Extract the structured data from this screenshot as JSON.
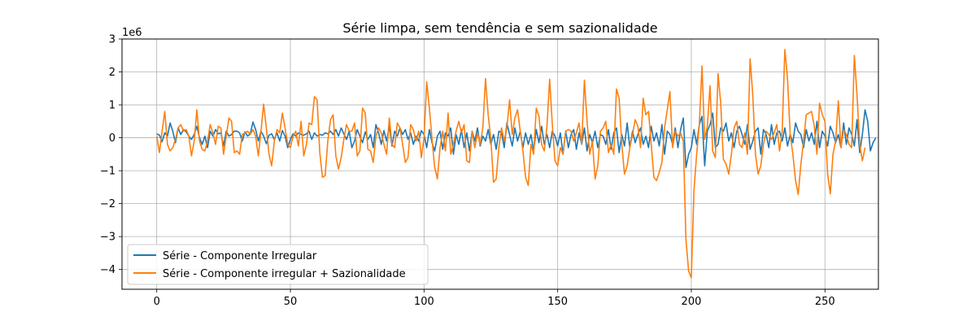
{
  "chart_data": {
    "type": "line",
    "title": "Série limpa, sem tendência e sem sazionalidade",
    "xlabel": "",
    "ylabel": "",
    "scale_label": "1e6",
    "xlim": [
      -13,
      270
    ],
    "ylim": [
      -4.6,
      3.0
    ],
    "xticks": [
      0,
      50,
      100,
      150,
      200,
      250
    ],
    "yticks": [
      -4,
      -3,
      -2,
      -1,
      0,
      1,
      2,
      3
    ],
    "xtick_labels": [
      "0",
      "50",
      "100",
      "150",
      "200",
      "250"
    ],
    "ytick_labels": [
      "−4",
      "−3",
      "−2",
      "−1",
      "0",
      "1",
      "2",
      "3"
    ],
    "grid": true,
    "legend_position": "lower-left",
    "series": [
      {
        "name": "Série - Componente Irregular",
        "color": "#1f77b4",
        "values": [
          0.12,
          0.08,
          -0.12,
          0.15,
          0.05,
          0.45,
          0.2,
          -0.15,
          0.3,
          0.1,
          0.25,
          0.18,
          0.05,
          -0.05,
          0.1,
          0.35,
          0.0,
          -0.2,
          0.05,
          -0.3,
          0.2,
          0.05,
          0.25,
          0.12,
          0.15,
          -0.25,
          0.2,
          0.05,
          0.1,
          0.2,
          0.2,
          0.15,
          -0.1,
          0.18,
          0.05,
          0.12,
          0.48,
          0.25,
          -0.1,
          0.2,
          0.05,
          -0.18,
          0.08,
          0.12,
          -0.05,
          0.15,
          -0.1,
          0.22,
          0.05,
          -0.3,
          -0.05,
          0.12,
          0.05,
          0.15,
          0.1,
          0.08,
          0.12,
          0.2,
          -0.05,
          0.15,
          0.05,
          0.1,
          0.08,
          0.15,
          0.12,
          0.2,
          0.1,
          0.25,
          0.05,
          0.3,
          0.12,
          -0.05,
          0.2,
          -0.3,
          -0.1,
          0.25,
          0.05,
          -0.15,
          0.18,
          -0.05,
          0.1,
          -0.3,
          0.4,
          0.15,
          -0.2,
          0.22,
          -0.1,
          0.35,
          -0.25,
          0.2,
          0.05,
          0.3,
          0.1,
          0.25,
          -0.05,
          0.15,
          -0.2,
          0.05,
          -0.1,
          0.22,
          0.1,
          -0.3,
          0.25,
          -0.15,
          -0.4,
          0.05,
          0.2,
          -0.35,
          0.15,
          0.05,
          0.3,
          -0.5,
          0.1,
          -0.2,
          0.25,
          -0.3,
          0.15,
          -0.4,
          0.2,
          -0.1,
          0.3,
          -0.25,
          0.05,
          -0.1,
          0.25,
          -0.2,
          0.1,
          -0.35,
          0.2,
          0.15,
          -0.3,
          0.45,
          0.1,
          -0.25,
          0.3,
          -0.1,
          0.2,
          -0.3,
          0.15,
          -0.2,
          0.1,
          -0.4,
          0.25,
          -0.15,
          0.35,
          -0.2,
          0.1,
          -0.3,
          0.2,
          0.05,
          -0.25,
          0.15,
          -0.5,
          0.2,
          -0.3,
          0.1,
          0.25,
          -0.35,
          0.15,
          -0.2,
          0.3,
          -0.4,
          0.1,
          -0.15,
          0.2,
          -0.3,
          0.1,
          0.05,
          -0.2,
          0.25,
          -0.35,
          0.15,
          0.3,
          -0.45,
          0.1,
          -0.25,
          0.45,
          -0.3,
          0.2,
          -0.15,
          0.1,
          0.3,
          -0.2,
          0.05,
          -0.3,
          0.35,
          -0.1,
          0.15,
          -0.25,
          0.4,
          -0.5,
          0.2,
          0.1,
          -0.2,
          0.3,
          -0.3,
          0.25,
          0.6,
          -0.9,
          -0.5,
          -0.3,
          0.25,
          -0.2,
          0.4,
          0.65,
          -0.85,
          0.2,
          0.4,
          0.75,
          -0.3,
          -0.2,
          0.3,
          0.2,
          0.45,
          -0.1,
          0.15,
          -0.3,
          0.2,
          0.35,
          0.1,
          -0.2,
          0.4,
          -0.35,
          -0.1,
          0.2,
          0.3,
          -0.5,
          0.25,
          0.1,
          -0.3,
          0.4,
          -0.2,
          0.15,
          0.2,
          -0.1,
          0.3,
          -0.25,
          0.1,
          -0.15,
          0.45,
          0.2,
          0.1,
          -0.3,
          0.25,
          -0.1,
          0.15,
          -0.2,
          0.5,
          -0.3,
          0.2,
          0.05,
          -0.25,
          0.35,
          0.15,
          -0.15,
          0.1,
          -0.3,
          0.45,
          -0.2,
          0.3,
          0.1,
          -0.25,
          0.55,
          -0.45,
          0.1,
          0.85,
          0.5,
          -0.4,
          -0.15,
          0.0
        ]
      },
      {
        "name": "Série - Componente irregular + Sazionalidade",
        "color": "#ff7f0e",
        "values": [
          0.05,
          -0.45,
          0.2,
          0.8,
          -0.2,
          -0.4,
          -0.3,
          -0.05,
          0.3,
          0.4,
          0.2,
          0.25,
          0.05,
          -0.55,
          -0.1,
          0.85,
          -0.1,
          -0.35,
          -0.4,
          -0.1,
          0.4,
          0.15,
          -0.2,
          0.35,
          0.3,
          -0.5,
          0.05,
          0.6,
          0.5,
          -0.45,
          -0.4,
          -0.5,
          0.1,
          0.15,
          0.2,
          0.1,
          0.25,
          0.05,
          -0.55,
          0.2,
          1.02,
          0.3,
          -0.5,
          -0.85,
          -0.1,
          0.25,
          0.15,
          0.75,
          0.3,
          -0.2,
          -0.3,
          0.05,
          0.2,
          -0.25,
          0.5,
          -0.55,
          -0.2,
          0.45,
          0.4,
          1.25,
          1.15,
          -0.45,
          -1.2,
          -1.15,
          -0.1,
          0.55,
          0.7,
          -0.55,
          -0.95,
          -0.6,
          -0.05,
          0.4,
          0.2,
          0.2,
          0.45,
          -0.55,
          -0.4,
          0.9,
          0.75,
          -0.35,
          -0.4,
          -0.75,
          0.05,
          0.3,
          0.15,
          -0.2,
          -0.5,
          0.6,
          -0.2,
          -0.3,
          0.45,
          0.3,
          -0.2,
          -0.75,
          -0.6,
          0.4,
          0.25,
          -0.1,
          0.2,
          -0.6,
          0.0,
          1.7,
          0.9,
          -0.05,
          -0.9,
          -1.25,
          -0.3,
          0.2,
          -0.4,
          0.75,
          -0.5,
          -0.2,
          0.2,
          0.5,
          0.15,
          0.4,
          -0.7,
          -0.75,
          0.2,
          -0.3,
          0.15,
          -0.2,
          0.3,
          1.8,
          0.7,
          -0.05,
          -1.35,
          -1.25,
          -0.3,
          0.3,
          -0.1,
          0.3,
          1.15,
          0.1,
          0.6,
          0.85,
          0.2,
          -0.4,
          -1.2,
          -1.45,
          -0.2,
          -0.5,
          0.9,
          0.65,
          -0.2,
          -0.4,
          0.35,
          1.78,
          0.4,
          -0.7,
          -0.85,
          -0.3,
          -0.5,
          0.2,
          0.25,
          0.2,
          -0.1,
          0.15,
          0.45,
          -0.2,
          1.75,
          0.5,
          -0.5,
          -0.1,
          -1.25,
          -0.85,
          0.2,
          0.3,
          0.5,
          -0.45,
          -0.2,
          -0.5,
          1.48,
          1.2,
          -0.2,
          -1.1,
          -0.85,
          -0.3,
          0.1,
          0.55,
          0.35,
          -0.3,
          1.2,
          0.7,
          0.8,
          -0.2,
          -1.2,
          -1.3,
          -1.05,
          -0.75,
          0.3,
          0.85,
          1.4,
          -0.3,
          0.2,
          0.05,
          0.15,
          -0.1,
          -3.1,
          -4.05,
          -4.25,
          -1.6,
          -0.5,
          0.4,
          2.18,
          -0.05,
          0.35,
          1.58,
          -0.4,
          -0.6,
          1.95,
          1.05,
          -0.65,
          -0.8,
          -1.1,
          -0.5,
          0.3,
          0.5,
          -0.2,
          -0.3,
          0.15,
          -0.5,
          2.4,
          1.3,
          -0.5,
          -1.1,
          -0.85,
          -0.2,
          0.2,
          0.1,
          -0.05,
          0.15,
          0.4,
          -0.4,
          0.2,
          2.68,
          1.8,
          0.1,
          -0.5,
          -1.3,
          -1.72,
          -0.8,
          -0.1,
          0.7,
          0.75,
          0.8,
          0.35,
          -0.5,
          1.05,
          0.7,
          0.5,
          -1.1,
          -1.7,
          -0.5,
          -0.1,
          1.12,
          -0.3,
          0.25,
          0.1,
          -0.2,
          -0.3,
          2.5,
          1.3,
          -0.2,
          -0.7,
          -0.3
        ]
      }
    ]
  }
}
